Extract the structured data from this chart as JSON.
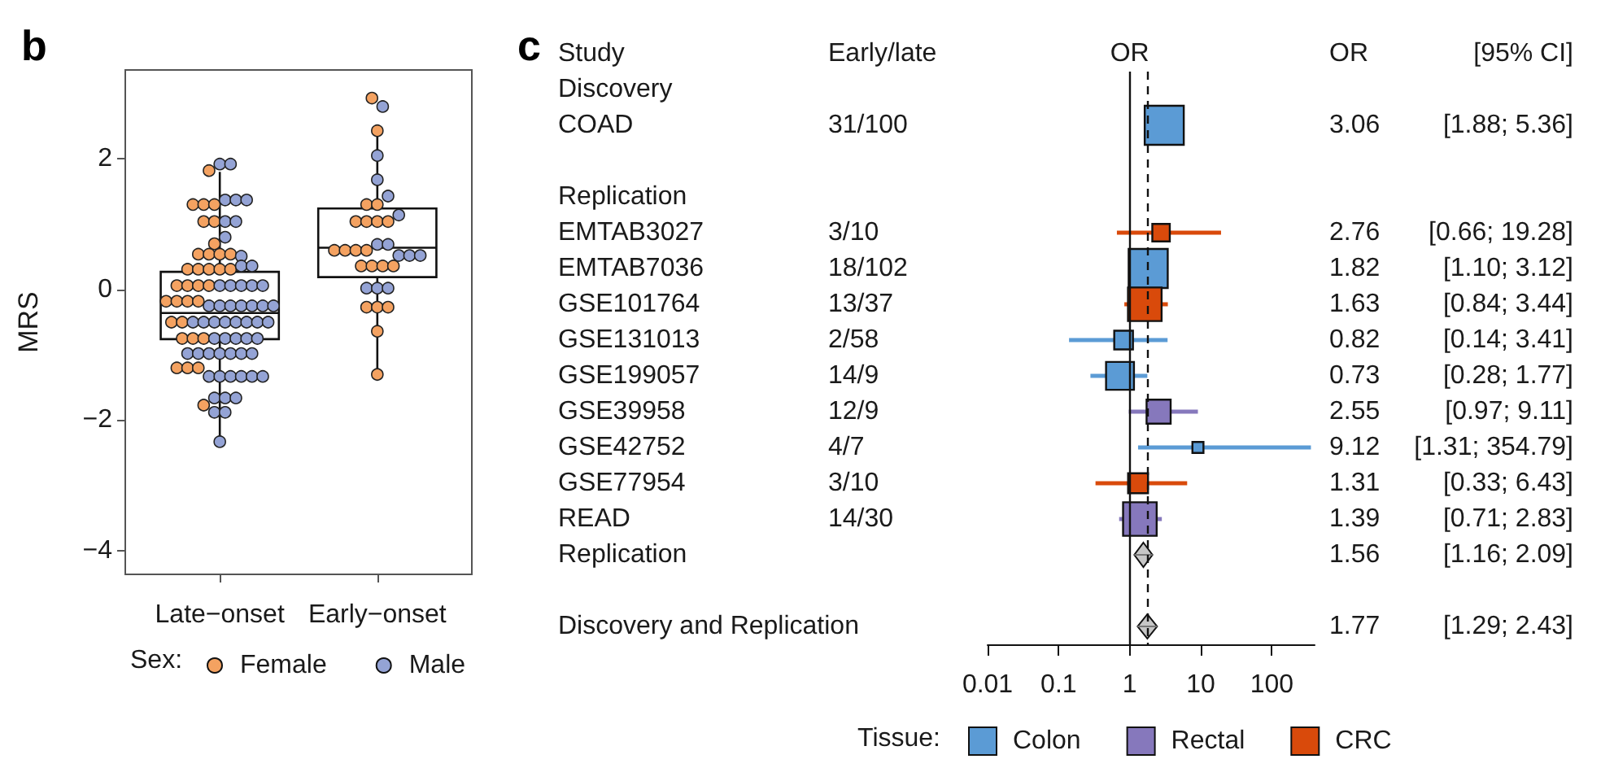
{
  "chart_data": [
    {
      "type": "box",
      "title": "b",
      "ylabel": "MRS",
      "categories": [
        "Late−onset",
        "Early−onset"
      ],
      "boxes": [
        {
          "low": -2.32,
          "q1": -0.76,
          "median": -0.36,
          "q3": 0.27,
          "high": 1.8
        },
        {
          "low": -1.31,
          "q1": 0.19,
          "median": 0.64,
          "q3": 1.24,
          "high": 2.42
        }
      ],
      "series": [
        {
          "type": "scatter",
          "name": "Female",
          "color": "#f4a261",
          "x": [
            "Late−onset",
            "Late−onset",
            "Late−onset",
            "Late−onset",
            "Late−onset",
            "Late−onset",
            "Late−onset",
            "Late−onset",
            "Late−onset",
            "Late−onset",
            "Late−onset",
            "Late−onset",
            "Late−onset",
            "Late−onset",
            "Late−onset",
            "Late−onset",
            "Late−onset",
            "Late−onset",
            "Late−onset",
            "Late−onset",
            "Late−onset",
            "Late−onset",
            "Late−onset",
            "Late−onset",
            "Late−onset",
            "Late−onset",
            "Late−onset",
            "Late−onset",
            "Late−onset",
            "Late−onset",
            "Late−onset",
            "Late−onset",
            "Late−onset",
            "Early−onset",
            "Early−onset",
            "Early−onset",
            "Early−onset",
            "Early−onset",
            "Early−onset",
            "Early−onset",
            "Early−onset",
            "Early−onset",
            "Early−onset",
            "Early−onset",
            "Early−onset",
            "Early−onset",
            "Early−onset",
            "Early−onset",
            "Early−onset",
            "Early−onset",
            "Early−onset",
            "Early−onset",
            "Early−onset",
            "Early−onset"
          ],
          "values": [
            1.82,
            1.3,
            1.3,
            1.3,
            1.04,
            1.04,
            0.7,
            0.54,
            0.54,
            0.54,
            0.54,
            0.31,
            0.31,
            0.31,
            0.31,
            0.31,
            0.06,
            0.06,
            0.06,
            0.06,
            -0.18,
            -0.18,
            -0.18,
            -0.18,
            -0.5,
            -0.5,
            -0.75,
            -0.75,
            -0.75,
            -1.2,
            -1.2,
            -1.2,
            -1.77,
            2.93,
            2.43,
            1.3,
            1.3,
            1.04,
            1.04,
            1.04,
            1.04,
            0.6,
            0.6,
            0.6,
            0.6,
            0.36,
            0.36,
            0.36,
            0.36,
            -0.27,
            -0.27,
            -0.27,
            -0.64,
            -1.3
          ]
        },
        {
          "type": "scatter",
          "name": "Male",
          "color": "#94a3d5",
          "x": [
            "Late−onset",
            "Late−onset",
            "Late−onset",
            "Late−onset",
            "Late−onset",
            "Late−onset",
            "Late−onset",
            "Late−onset",
            "Late−onset",
            "Late−onset",
            "Late−onset",
            "Late−onset",
            "Late−onset",
            "Late−onset",
            "Late−onset",
            "Late−onset",
            "Late−onset",
            "Late−onset",
            "Late−onset",
            "Late−onset",
            "Late−onset",
            "Late−onset",
            "Late−onset",
            "Late−onset",
            "Late−onset",
            "Late−onset",
            "Late−onset",
            "Late−onset",
            "Late−onset",
            "Late−onset",
            "Late−onset",
            "Late−onset",
            "Late−onset",
            "Late−onset",
            "Late−onset",
            "Late−onset",
            "Late−onset",
            "Late−onset",
            "Late−onset",
            "Late−onset",
            "Late−onset",
            "Late−onset",
            "Late−onset",
            "Late−onset",
            "Late−onset",
            "Late−onset",
            "Late−onset",
            "Late−onset",
            "Late−onset",
            "Late−onset",
            "Late−onset",
            "Late−onset",
            "Late−onset",
            "Late−onset",
            "Late−onset",
            "Early−onset",
            "Early−onset",
            "Early−onset",
            "Early−onset",
            "Early−onset",
            "Early−onset",
            "Early−onset",
            "Early−onset",
            "Early−onset",
            "Early−onset",
            "Early−onset",
            "Early−onset",
            "Early−onset"
          ],
          "values": [
            1.92,
            1.92,
            1.37,
            1.37,
            1.37,
            1.04,
            1.04,
            0.8,
            0.51,
            0.36,
            0.36,
            0.06,
            0.06,
            0.06,
            0.06,
            0.06,
            -0.25,
            -0.25,
            -0.25,
            -0.25,
            -0.25,
            -0.25,
            -0.25,
            -0.5,
            -0.5,
            -0.5,
            -0.5,
            -0.5,
            -0.5,
            -0.5,
            -0.5,
            -0.75,
            -0.75,
            -0.75,
            -0.75,
            -0.75,
            -0.98,
            -0.98,
            -0.98,
            -0.98,
            -0.98,
            -0.98,
            -0.98,
            -1.33,
            -1.33,
            -1.33,
            -1.33,
            -1.33,
            -1.33,
            -1.66,
            -1.66,
            -1.66,
            -1.88,
            -1.88,
            -2.33,
            2.8,
            2.05,
            1.68,
            1.43,
            1.14,
            0.69,
            0.69,
            0.52,
            0.52,
            0.52,
            0.02,
            0.02,
            0.02
          ]
        }
      ],
      "ylim": [
        -4.36,
        3.36
      ],
      "yticks": [
        2,
        0,
        {
          "value": -2,
          "label": "−2"
        },
        {
          "value": -4,
          "label": "−4"
        }
      ],
      "legend": "bottom",
      "legend_title": "Sex:",
      "marker": "circle"
    },
    {
      "type": "bubble",
      "title": "c",
      "orientation": "horizontal",
      "ylabel": "Study",
      "xlabel": "OR",
      "y2label": "[95% CI]",
      "categories": [
        "Discovery",
        "COAD",
        null,
        "Replication",
        "EMTAB3027",
        "EMTAB7036",
        "GSE101764",
        "GSE131013",
        "GSE199057",
        "GSE39958",
        "GSE42752",
        "GSE77954",
        "READ",
        "Replication",
        null,
        "Discovery and Replication"
      ],
      "y2_categories": [
        null,
        "[1.88; 5.36]",
        null,
        null,
        "[0.66; 19.28]",
        "[1.10; 3.12]",
        "[0.84; 3.44]",
        "[0.14; 3.41]",
        "[0.28; 1.77]",
        "[0.97; 9.11]",
        "[1.31; 354.79]",
        "[0.33; 6.43]",
        "[0.71; 2.83]",
        "[1.16; 2.09]",
        null,
        "[1.29; 2.43]"
      ],
      "annotations": [
        "Early/late",
        "OR",
        "31/100",
        "3/10",
        "18/102",
        "13/37",
        "2/58",
        "14/9",
        "12/9",
        "4/7",
        "3/10",
        "14/30",
        "3.06",
        "2.76",
        "1.82",
        "1.63",
        "0.82",
        "0.73",
        "2.55",
        "9.12",
        "1.31",
        "1.39",
        "1.56",
        "1.77"
      ],
      "series": [
        {
          "name": "Colon",
          "color": "#5b9bd5",
          "values": [
            null,
            3.06,
            null,
            null,
            null,
            1.82,
            null,
            0.82,
            0.73,
            null,
            9.12,
            null,
            null,
            null,
            null,
            null
          ],
          "errors": [
            null,
            [
              1.88,
              5.36
            ],
            null,
            null,
            null,
            [
              1.1,
              3.12
            ],
            null,
            [
              0.14,
              3.41
            ],
            [
              0.28,
              1.77
            ],
            null,
            [
              1.31,
              354.79
            ],
            null,
            null,
            null,
            null,
            null
          ],
          "sizes": [
            null,
            1,
            null,
            null,
            null,
            1,
            null,
            0.23,
            0.51,
            null,
            0.08,
            null,
            null,
            null,
            null,
            null
          ]
        },
        {
          "name": "Rectal",
          "color": "#8678bc",
          "values": [
            null,
            null,
            null,
            null,
            null,
            null,
            null,
            null,
            null,
            2.55,
            null,
            null,
            1.39,
            null,
            null,
            null
          ],
          "errors": [
            null,
            null,
            null,
            null,
            null,
            null,
            null,
            null,
            null,
            [
              0.97,
              9.11
            ],
            null,
            null,
            [
              0.71,
              2.83
            ],
            null,
            null,
            null
          ],
          "sizes": [
            null,
            null,
            null,
            null,
            null,
            null,
            null,
            null,
            null,
            0.38,
            null,
            null,
            0.74,
            null,
            null,
            null
          ]
        },
        {
          "name": "CRC",
          "color": "#d94a0b",
          "values": [
            null,
            null,
            null,
            null,
            2.76,
            null,
            1.63,
            null,
            null,
            null,
            null,
            1.31,
            null,
            null,
            null,
            null
          ],
          "errors": [
            null,
            null,
            null,
            null,
            [
              0.66,
              19.28
            ],
            null,
            [
              0.84,
              3.44
            ],
            null,
            null,
            null,
            null,
            [
              0.33,
              6.43
            ],
            null,
            null,
            null,
            null
          ],
          "sizes": [
            null,
            null,
            null,
            null,
            0.2,
            null,
            0.74,
            null,
            null,
            null,
            null,
            0.26,
            null,
            null,
            null,
            null
          ]
        },
        {
          "type": "scatter",
          "marker": "diamond",
          "color": "#c6c6c6",
          "values": [
            null,
            null,
            null,
            null,
            null,
            null,
            null,
            null,
            null,
            null,
            null,
            null,
            null,
            1.56,
            null,
            1.77
          ],
          "errors": [
            null,
            null,
            null,
            null,
            null,
            null,
            null,
            null,
            null,
            null,
            null,
            null,
            null,
            [
              1.16,
              2.09
            ],
            null,
            [
              1.29,
              2.43
            ]
          ]
        }
      ],
      "xlim": [
        0.01,
        400
      ],
      "xticks": [
        0.01,
        0.1,
        1,
        10,
        100
      ],
      "log": "x",
      "ref_lines": [
        {
          "axis": "x",
          "value": 1
        },
        {
          "axis": "x",
          "value": 1.77,
          "line_style": "dashed"
        }
      ],
      "legend": "bottom",
      "legend_title": "Tissue:",
      "marker": "square"
    }
  ]
}
